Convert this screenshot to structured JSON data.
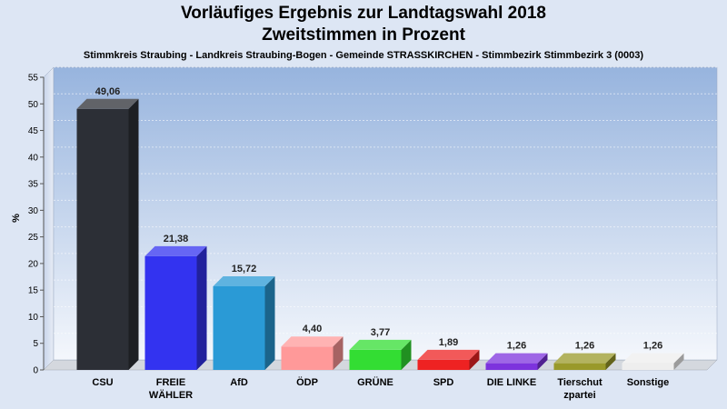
{
  "chart_data": {
    "type": "bar",
    "title": "Vorläufiges Ergebnis zur Landtagswahl 2018",
    "subtitle": "Zweitstimmen in Prozent",
    "description": "Stimmkreis Straubing - Landkreis Straubing-Bogen - Gemeinde STRASSKIRCHEN - Stimmbezirk Stimmbezirk 3 (0003)",
    "ylabel": "%",
    "xlabel": "",
    "ylim": [
      0,
      55
    ],
    "yticks": [
      0,
      5,
      10,
      15,
      20,
      25,
      30,
      35,
      40,
      45,
      50,
      55
    ],
    "categories": [
      [
        "CSU"
      ],
      [
        "FREIE",
        "WÄHLER"
      ],
      [
        "AfD"
      ],
      [
        "ÖDP"
      ],
      [
        "GRÜNE"
      ],
      [
        "SPD"
      ],
      [
        "DIE LINKE"
      ],
      [
        "Tierschut",
        "zpartei"
      ],
      [
        "Sonstige"
      ]
    ],
    "values": [
      49.06,
      21.38,
      15.72,
      4.4,
      3.77,
      1.89,
      1.26,
      1.26,
      1.26
    ],
    "value_labels": [
      "49,06",
      "21,38",
      "15,72",
      "4,40",
      "3,77",
      "1,89",
      "1,26",
      "1,26",
      "1,26"
    ],
    "colors": [
      "#2c2f36",
      "#3333f0",
      "#2a9ad6",
      "#ff9999",
      "#33dd33",
      "#ee2222",
      "#7d33dd",
      "#99992a",
      "#eeeeee"
    ],
    "grid": true
  }
}
